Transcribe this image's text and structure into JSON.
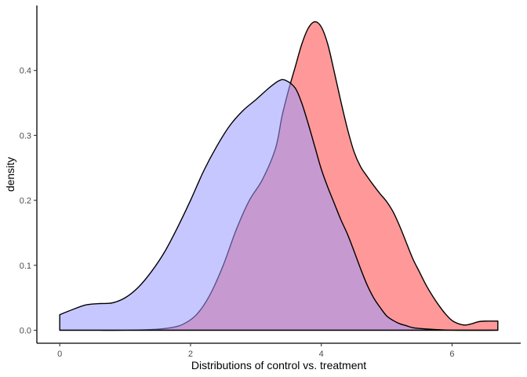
{
  "chart_data": {
    "type": "area",
    "xlabel": "Distributions of control vs. treatment",
    "ylabel": "density",
    "xlim": [
      -0.35,
      7.05
    ],
    "ylim": [
      -0.02,
      0.5
    ],
    "x_ticks": [
      0,
      2,
      4,
      6
    ],
    "x_tick_labels": [
      "0",
      "2",
      "4",
      "6"
    ],
    "y_ticks": [
      0.0,
      0.1,
      0.2,
      0.3,
      0.4
    ],
    "y_tick_labels": [
      "0.0",
      "0.1",
      "0.2",
      "0.3",
      "0.4"
    ],
    "grid": false,
    "legend": "none",
    "series": [
      {
        "color": "#ff9999",
        "points": [
          [
            0.0,
            0.0
          ],
          [
            0.5,
            0.0
          ],
          [
            1.0,
            0.0
          ],
          [
            1.4,
            0.001
          ],
          [
            1.7,
            0.004
          ],
          [
            1.9,
            0.01
          ],
          [
            2.1,
            0.025
          ],
          [
            2.3,
            0.055
          ],
          [
            2.5,
            0.1
          ],
          [
            2.7,
            0.155
          ],
          [
            2.9,
            0.2
          ],
          [
            3.1,
            0.232
          ],
          [
            3.3,
            0.28
          ],
          [
            3.4,
            0.33
          ],
          [
            3.5,
            0.37
          ],
          [
            3.6,
            0.405
          ],
          [
            3.7,
            0.44
          ],
          [
            3.8,
            0.465
          ],
          [
            3.9,
            0.475
          ],
          [
            4.0,
            0.467
          ],
          [
            4.1,
            0.44
          ],
          [
            4.2,
            0.397
          ],
          [
            4.3,
            0.352
          ],
          [
            4.4,
            0.31
          ],
          [
            4.5,
            0.275
          ],
          [
            4.6,
            0.252
          ],
          [
            4.7,
            0.237
          ],
          [
            4.8,
            0.223
          ],
          [
            4.9,
            0.21
          ],
          [
            5.0,
            0.198
          ],
          [
            5.1,
            0.182
          ],
          [
            5.2,
            0.16
          ],
          [
            5.3,
            0.135
          ],
          [
            5.4,
            0.11
          ],
          [
            5.5,
            0.09
          ],
          [
            5.6,
            0.07
          ],
          [
            5.7,
            0.053
          ],
          [
            5.8,
            0.038
          ],
          [
            5.9,
            0.025
          ],
          [
            6.0,
            0.015
          ],
          [
            6.1,
            0.01
          ],
          [
            6.2,
            0.008
          ],
          [
            6.3,
            0.01
          ],
          [
            6.4,
            0.013
          ],
          [
            6.5,
            0.014
          ],
          [
            6.7,
            0.014
          ]
        ]
      },
      {
        "color": "#9999ff",
        "points": [
          [
            0.0,
            0.024
          ],
          [
            0.2,
            0.032
          ],
          [
            0.4,
            0.039
          ],
          [
            0.6,
            0.041
          ],
          [
            0.8,
            0.042
          ],
          [
            1.0,
            0.05
          ],
          [
            1.2,
            0.066
          ],
          [
            1.4,
            0.09
          ],
          [
            1.6,
            0.12
          ],
          [
            1.8,
            0.158
          ],
          [
            2.0,
            0.2
          ],
          [
            2.2,
            0.245
          ],
          [
            2.4,
            0.283
          ],
          [
            2.6,
            0.315
          ],
          [
            2.8,
            0.338
          ],
          [
            3.0,
            0.355
          ],
          [
            3.2,
            0.373
          ],
          [
            3.35,
            0.384
          ],
          [
            3.45,
            0.385
          ],
          [
            3.6,
            0.373
          ],
          [
            3.7,
            0.35
          ],
          [
            3.8,
            0.318
          ],
          [
            3.9,
            0.283
          ],
          [
            4.0,
            0.248
          ],
          [
            4.1,
            0.22
          ],
          [
            4.2,
            0.195
          ],
          [
            4.3,
            0.17
          ],
          [
            4.4,
            0.148
          ],
          [
            4.5,
            0.122
          ],
          [
            4.6,
            0.095
          ],
          [
            4.7,
            0.07
          ],
          [
            4.8,
            0.05
          ],
          [
            4.9,
            0.035
          ],
          [
            5.0,
            0.022
          ],
          [
            5.1,
            0.015
          ],
          [
            5.2,
            0.01
          ],
          [
            5.3,
            0.007
          ],
          [
            5.4,
            0.004
          ],
          [
            5.6,
            0.002
          ],
          [
            6.0,
            0.0
          ],
          [
            6.7,
            0.0
          ]
        ]
      }
    ]
  }
}
